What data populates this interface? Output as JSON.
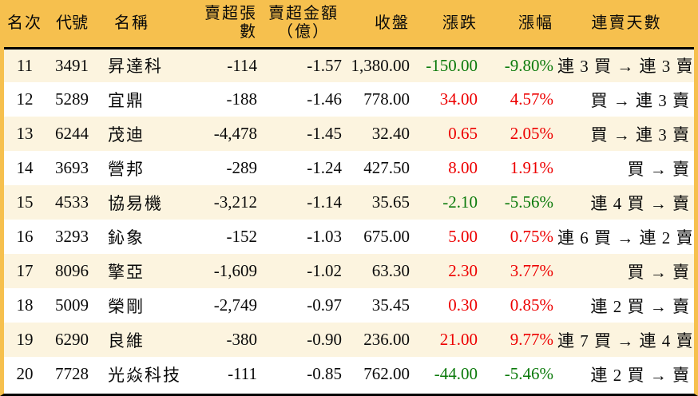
{
  "colors": {
    "accent_orange": "#F6C04E",
    "row_alt_cream": "#FCF4DF",
    "up_red": "#ED0000",
    "down_green": "#0B7A0B",
    "divider_black": "#000000",
    "text_black": "#0a0a0a"
  },
  "table": {
    "columns": [
      {
        "key": "rank",
        "label": "名次"
      },
      {
        "key": "code",
        "label": "代號"
      },
      {
        "key": "name",
        "label": "名稱"
      },
      {
        "key": "sell_volume",
        "label": "賣超張數"
      },
      {
        "key": "sell_amount",
        "label": "賣超金額\n（億）"
      },
      {
        "key": "close",
        "label": "收盤"
      },
      {
        "key": "change",
        "label": "漲跌"
      },
      {
        "key": "change_pct",
        "label": "漲幅"
      },
      {
        "key": "streak",
        "label": "連賣天數"
      }
    ],
    "rows": [
      {
        "rank": "11",
        "code": "3491",
        "name": "昇達科",
        "sell_volume": "-114",
        "sell_amount": "-1.57",
        "close": "1,380.00",
        "change": "-150.00",
        "change_pct": "-9.80%",
        "direction": "down",
        "streak": "連 3 買 → 連 3 賣"
      },
      {
        "rank": "12",
        "code": "5289",
        "name": "宜鼎",
        "sell_volume": "-188",
        "sell_amount": "-1.46",
        "close": "778.00",
        "change": "34.00",
        "change_pct": "4.57%",
        "direction": "up",
        "streak": "買 → 連 3 賣"
      },
      {
        "rank": "13",
        "code": "6244",
        "name": "茂迪",
        "sell_volume": "-4,478",
        "sell_amount": "-1.45",
        "close": "32.40",
        "change": "0.65",
        "change_pct": "2.05%",
        "direction": "up",
        "streak": "買 → 連 3 賣"
      },
      {
        "rank": "14",
        "code": "3693",
        "name": "營邦",
        "sell_volume": "-289",
        "sell_amount": "-1.24",
        "close": "427.50",
        "change": "8.00",
        "change_pct": "1.91%",
        "direction": "up",
        "streak": "買 → 賣"
      },
      {
        "rank": "15",
        "code": "4533",
        "name": "協易機",
        "sell_volume": "-3,212",
        "sell_amount": "-1.14",
        "close": "35.65",
        "change": "-2.10",
        "change_pct": "-5.56%",
        "direction": "down",
        "streak": "連 4 買 → 賣"
      },
      {
        "rank": "16",
        "code": "3293",
        "name": "鈊象",
        "sell_volume": "-152",
        "sell_amount": "-1.03",
        "close": "675.00",
        "change": "5.00",
        "change_pct": "0.75%",
        "direction": "up",
        "streak": "連 6 買 → 連 2 賣"
      },
      {
        "rank": "17",
        "code": "8096",
        "name": "擎亞",
        "sell_volume": "-1,609",
        "sell_amount": "-1.02",
        "close": "63.30",
        "change": "2.30",
        "change_pct": "3.77%",
        "direction": "up",
        "streak": "買 → 賣"
      },
      {
        "rank": "18",
        "code": "5009",
        "name": "榮剛",
        "sell_volume": "-2,749",
        "sell_amount": "-0.97",
        "close": "35.45",
        "change": "0.30",
        "change_pct": "0.85%",
        "direction": "up",
        "streak": "連 2 買 → 賣"
      },
      {
        "rank": "19",
        "code": "6290",
        "name": "良維",
        "sell_volume": "-380",
        "sell_amount": "-0.90",
        "close": "236.00",
        "change": "21.00",
        "change_pct": "9.77%",
        "direction": "up",
        "streak": "連 7 買 → 連 4 賣"
      },
      {
        "rank": "20",
        "code": "7728",
        "name": "光焱科技",
        "sell_volume": "-111",
        "sell_amount": "-0.85",
        "close": "762.00",
        "change": "-44.00",
        "change_pct": "-5.46%",
        "direction": "down",
        "streak": "連 2 買 → 賣"
      }
    ]
  }
}
